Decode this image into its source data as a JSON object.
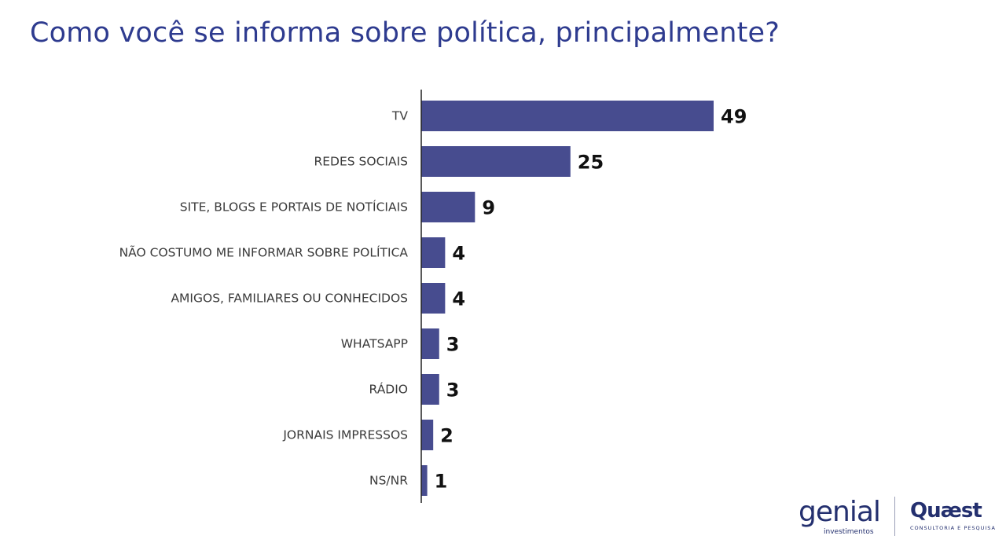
{
  "title": "Como você se informa sobre política, principalmente?",
  "colors": {
    "bar": "#474c8f",
    "title": "#2e3b8f",
    "axis": "#222222"
  },
  "chart_data": {
    "type": "bar",
    "orientation": "horizontal",
    "categories": [
      "TV",
      "REDES SOCIAIS",
      "SITE, BLOGS E PORTAIS DE NOTÍCIAIS",
      "NÃO COSTUMO ME INFORMAR SOBRE POLÍTICA",
      "AMIGOS, FAMILIARES OU CONHECIDOS",
      "WHATSAPP",
      "RÁDIO",
      "JORNAIS IMPRESSOS",
      "NS/NR"
    ],
    "values": [
      49,
      25,
      9,
      4,
      4,
      3,
      3,
      2,
      1
    ],
    "data_labels": [
      "49",
      "25",
      "9",
      "4",
      "4",
      "3",
      "3",
      "2",
      "1"
    ],
    "xlim": [
      0,
      49
    ],
    "grid": false,
    "legend": "none"
  },
  "logos": {
    "genial": {
      "word": "genial",
      "sub": "investimentos"
    },
    "quaest": {
      "word": "Quæst",
      "sub": "CONSULTORIA E PESQUISA"
    }
  }
}
